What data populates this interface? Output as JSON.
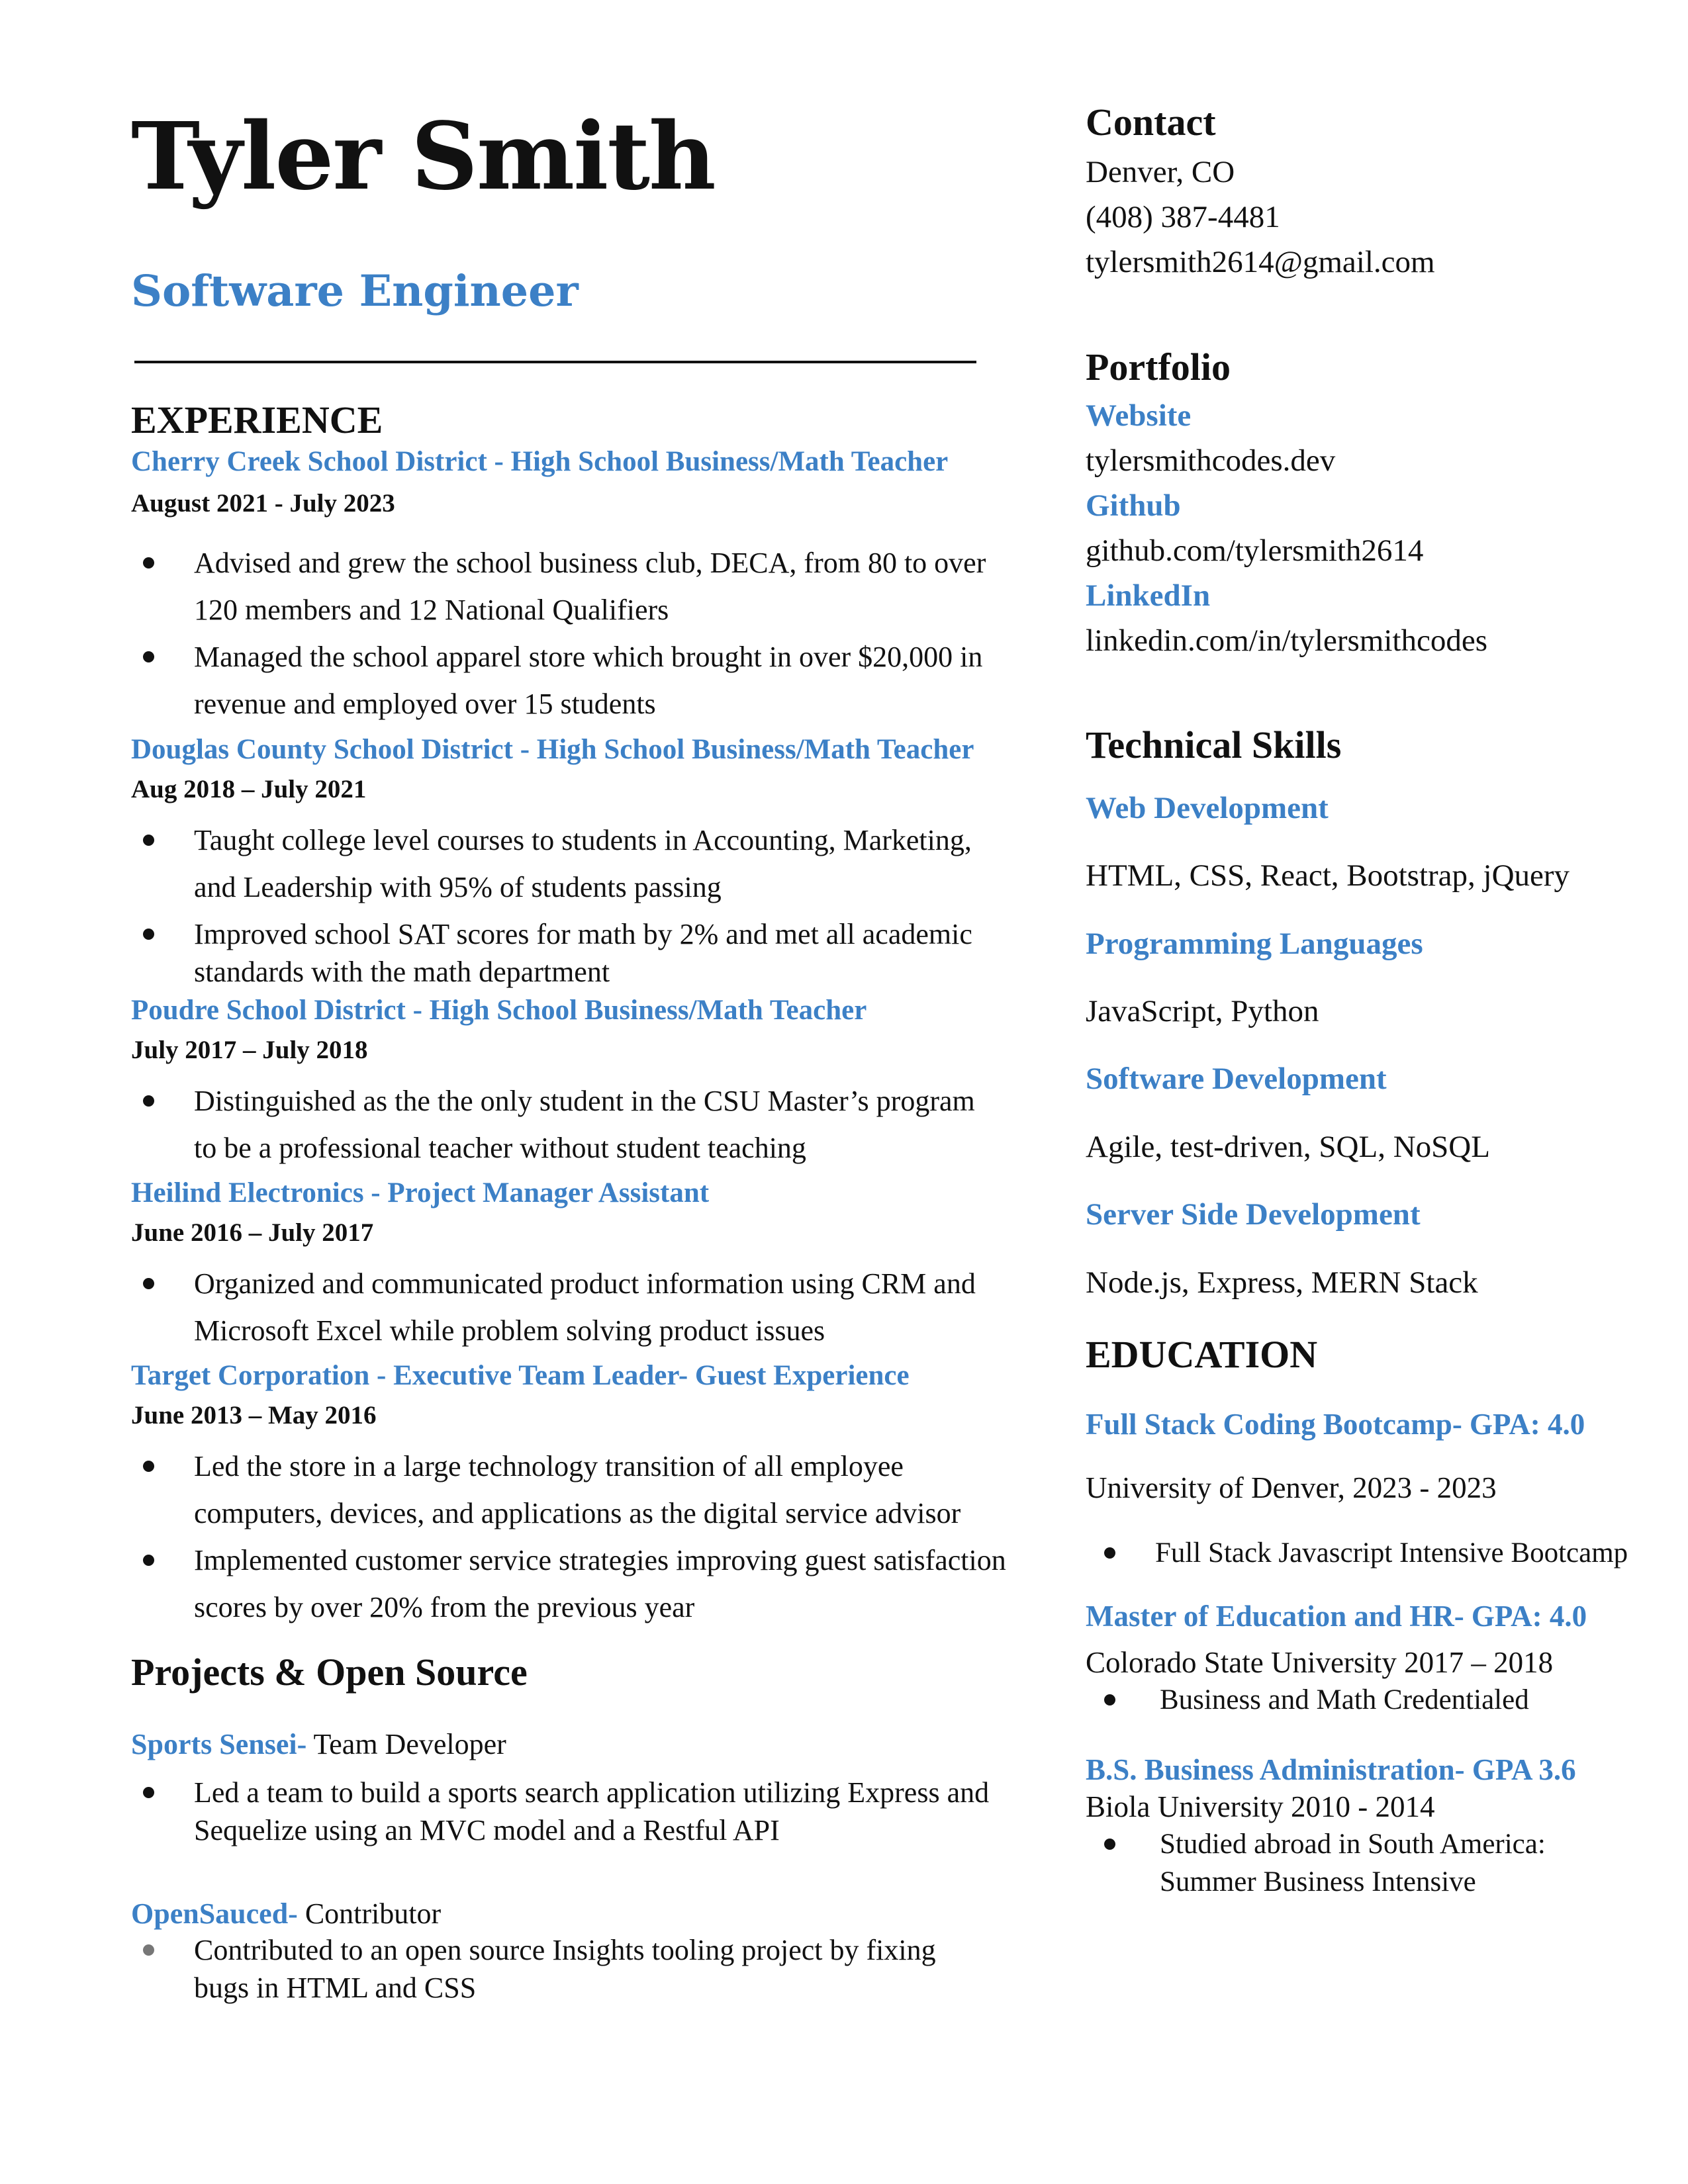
{
  "header": {
    "name": "Tyler Smith",
    "title": "Software Engineer"
  },
  "experience": {
    "heading": "EXPERIENCE",
    "jobs": [
      {
        "employer": "Cherry Creek School District - ",
        "role": "High School Business/Math Teacher",
        "dates": "August 2021 - July 2023",
        "bullets": [
          "Advised and grew the school business club, DECA, from 80 to over 120 members and 12 National Qualifiers",
          "Managed the school apparel store which brought in over $20,000 in revenue and employed over 15 students"
        ]
      },
      {
        "employer": "Douglas County School District - ",
        "role": "High School Business/Math Teacher",
        "dates": "Aug 2018 – July 2021",
        "bullets": [
          "Taught college level courses to students in Accounting, Marketing, and Leadership with 95% of students passing",
          "Improved school SAT scores for math by 2% and met all academic standards with the math department"
        ]
      },
      {
        "employer": "Poudre School District - ",
        "role": "High School Business/Math Teacher",
        "dates": "July  2017 – July 2018",
        "bullets": [
          "Distinguished as the the only student in the CSU Master’s program to be a professional teacher without student teaching"
        ]
      },
      {
        "employer": "Heilind Electronics - ",
        "role": "Project Manager Assistant",
        "dates": "June  2016 – July 2017",
        "bullets": [
          "Organized and communicated product information using CRM and Microsoft Excel while problem solving product issues"
        ]
      },
      {
        "employer": "Target Corporation - ",
        "role": "Executive Team Leader- Guest Experience",
        "dates": "June  2013 – May 2016",
        "bullets": [
          "Led the store in a large technology transition of all employee computers, devices, and applications as the digital service advisor",
          "Implemented customer service strategies improving guest satisfaction scores by over 20% from the previous year"
        ]
      }
    ]
  },
  "projects": {
    "heading": "Projects & Open Source",
    "items": [
      {
        "name": "Sports Sensei-",
        "role": " Team Developer",
        "bullets": [
          "Led a team to build a  sports search application utilizing Express and Sequelize using an MVC model and a Restful API"
        ]
      },
      {
        "name": "OpenSauced-",
        "role": " Contributor",
        "bullets": [
          "Contributed to an open source Insights tooling project by fixing bugs in HTML and CSS"
        ]
      }
    ]
  },
  "contact": {
    "heading": "Contact",
    "location": "Denver, CO",
    "phone": "(408) 387-4481",
    "email": "tylersmith2614@gmail.com"
  },
  "portfolio": {
    "heading": "Portfolio",
    "website_label": "Website",
    "website": "tylersmithcodes.dev",
    "github_label": "Github",
    "github": "github.com/tylersmith2614",
    "linkedin_label": "LinkedIn",
    "linkedin": "linkedin.com/in/tylersmithcodes"
  },
  "skills": {
    "heading": "Technical Skills",
    "groups": [
      {
        "label": "Web Development",
        "items": "HTML, CSS, React, Bootstrap, jQuery"
      },
      {
        "label": "Programming Languages",
        "items": "JavaScript, Python"
      },
      {
        "label": "Software Development",
        "items": "Agile, test-driven, SQL, NoSQL"
      },
      {
        "label": "Server Side Development",
        "items": "Node.js, Express, MERN Stack"
      }
    ]
  },
  "education": {
    "heading": "EDUCATION",
    "entries": [
      {
        "title": "Full Stack Coding Bootcamp- GPA: 4.0",
        "school": "University of Denver,  2023 - 2023",
        "bullet": "Full Stack Javascript Intensive Bootcamp"
      },
      {
        "title": "Master of Education and HR- GPA: 4.0",
        "school": "Colorado State University 2017 – 2018",
        "bullet": "Business and Math Credentialed"
      },
      {
        "title": "B.S. Business Administration- GPA 3.6",
        "school": "Biola University 2010 - 2014",
        "bullet": "Studied abroad in South America: Summer Business Intensive"
      }
    ]
  }
}
